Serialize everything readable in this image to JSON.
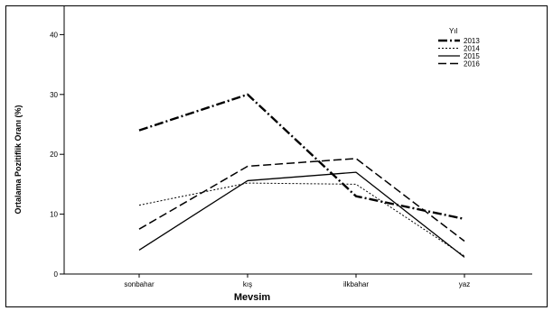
{
  "chart_data": {
    "type": "line",
    "title": "",
    "xlabel": "Mevsim",
    "ylabel": "Ortalama Pozitiflik Oranı (%)",
    "categories": [
      "sonbahar",
      "kış",
      "ilkbahar",
      "yaz"
    ],
    "ylim": [
      0,
      42
    ],
    "yticks": [
      0,
      10,
      20,
      30,
      40
    ],
    "grid": false,
    "legend": {
      "title": "Yıl",
      "position": "top-right"
    },
    "series": [
      {
        "name": "2013",
        "values": [
          24,
          30,
          13,
          9.2
        ],
        "color": "#000000",
        "dash": "dash-dot"
      },
      {
        "name": "2014",
        "values": [
          11.5,
          15.2,
          15,
          3
        ],
        "color": "#000000",
        "dash": "dotted"
      },
      {
        "name": "2015",
        "values": [
          4,
          15.6,
          17,
          2.8
        ],
        "color": "#000000",
        "dash": "solid"
      },
      {
        "name": "2016",
        "values": [
          7.5,
          18,
          19.3,
          5.5
        ],
        "color": "#000000",
        "dash": "dashed"
      }
    ]
  }
}
